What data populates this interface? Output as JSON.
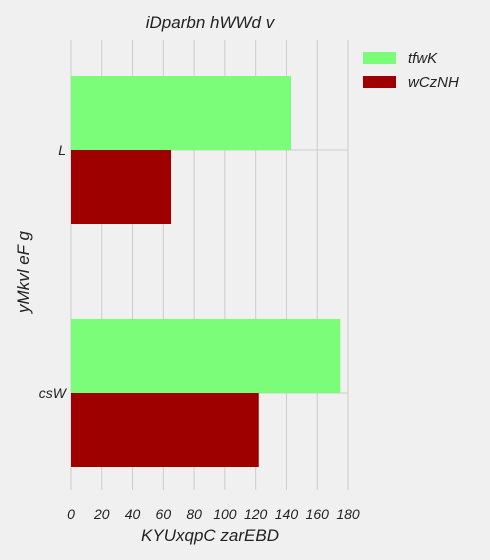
{
  "chart_data": {
    "type": "bar",
    "orientation": "horizontal",
    "title": "iDparbn hWWd v",
    "xlabel": "KYUxqpC zarEBD",
    "ylabel": "yMkvl eF g",
    "categories": [
      "csW",
      "L"
    ],
    "series": [
      {
        "name": "tfwK",
        "color": "#7bfd7a",
        "values": [
          175,
          143
        ]
      },
      {
        "name": "wCzNH",
        "color": "#9e0000",
        "values": [
          122,
          65
        ]
      }
    ],
    "xlim": [
      0,
      180
    ],
    "xticks": [
      0,
      20,
      40,
      60,
      80,
      100,
      120,
      140,
      160,
      180
    ],
    "grid": true,
    "legend_position": "top-right"
  }
}
